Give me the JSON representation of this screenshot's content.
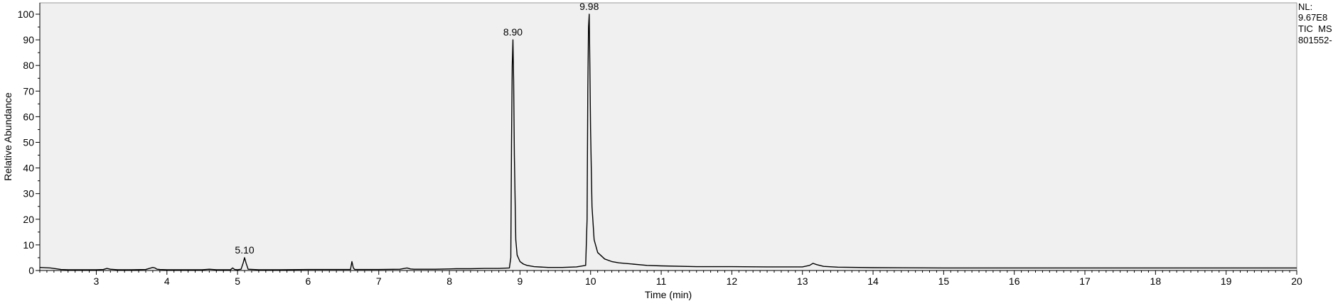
{
  "chart_data": {
    "type": "line",
    "xlabel": "Time (min)",
    "ylabel": "Relative Abundance",
    "xlim": [
      2.2,
      20.0
    ],
    "ylim": [
      0,
      100
    ],
    "x_ticks": [
      3,
      4,
      5,
      6,
      7,
      8,
      9,
      10,
      11,
      12,
      13,
      14,
      15,
      16,
      17,
      18,
      19,
      20
    ],
    "y_ticks": [
      0,
      10,
      20,
      30,
      40,
      50,
      60,
      70,
      80,
      90,
      100
    ],
    "grid": false,
    "plot_background": "#f0f0f0",
    "trace_color": "#000000",
    "peak_labels": [
      {
        "x": 5.1,
        "y": 5,
        "text": "5.10"
      },
      {
        "x": 8.9,
        "y": 90,
        "text": "8.90"
      },
      {
        "x": 9.98,
        "y": 100,
        "text": "9.98"
      }
    ],
    "series": [
      {
        "x": [
          2.2,
          2.35,
          2.45,
          2.5,
          2.6,
          2.7,
          2.8,
          2.9,
          3.0,
          3.1,
          3.15,
          3.2,
          3.3,
          3.5,
          3.7,
          3.8,
          3.83,
          3.86,
          3.9,
          4.0,
          4.2,
          4.5,
          4.6,
          4.7,
          4.9,
          4.93,
          4.96,
          5.0,
          5.05,
          5.08,
          5.1,
          5.12,
          5.15,
          5.3,
          5.6,
          6.0,
          6.3,
          6.6,
          6.62,
          6.64,
          6.66,
          6.7,
          7.0,
          7.3,
          7.4,
          7.45,
          7.5,
          7.8,
          8.1,
          8.3,
          8.5,
          8.7,
          8.85,
          8.87,
          8.88,
          8.89,
          8.9,
          8.91,
          8.92,
          8.94,
          8.96,
          9.0,
          9.05,
          9.1,
          9.2,
          9.4,
          9.6,
          9.8,
          9.93,
          9.95,
          9.96,
          9.97,
          9.98,
          9.99,
          10.0,
          10.02,
          10.05,
          10.1,
          10.2,
          10.3,
          10.4,
          10.6,
          10.8,
          11.0,
          11.5,
          12.0,
          12.5,
          13.0,
          13.1,
          13.15,
          13.2,
          13.3,
          13.5,
          14.0,
          15.0,
          16.0,
          17.0,
          18.0,
          19.0,
          20.0
        ],
        "y": [
          1.2,
          1.0,
          0.6,
          0.4,
          0.3,
          0.3,
          0.3,
          0.3,
          0.3,
          0.4,
          0.8,
          0.5,
          0.3,
          0.3,
          0.4,
          1.2,
          1.0,
          0.5,
          0.4,
          0.3,
          0.3,
          0.3,
          0.5,
          0.3,
          0.3,
          1.0,
          0.4,
          0.3,
          0.5,
          3.0,
          5.0,
          3.0,
          0.5,
          0.3,
          0.3,
          0.4,
          0.4,
          0.4,
          3.5,
          1.0,
          0.4,
          0.4,
          0.4,
          0.5,
          1.0,
          0.6,
          0.5,
          0.5,
          0.7,
          0.7,
          0.8,
          0.8,
          1.0,
          5.0,
          50.0,
          80.0,
          90.0,
          74.0,
          45.0,
          12.0,
          6.0,
          3.5,
          2.5,
          2.0,
          1.5,
          1.2,
          1.2,
          1.4,
          2.0,
          20.0,
          70.0,
          95.0,
          100.0,
          80.0,
          55.0,
          25.0,
          12.0,
          7.0,
          4.5,
          3.5,
          3.0,
          2.5,
          2.0,
          1.8,
          1.5,
          1.5,
          1.4,
          1.4,
          2.0,
          2.8,
          2.3,
          1.6,
          1.3,
          1.1,
          1.0,
          1.0,
          1.0,
          1.0,
          1.0,
          1.0
        ]
      }
    ]
  },
  "info": {
    "line1": "NL:",
    "line2": "9.67E8",
    "line3": "TIC  MS",
    "line4": "801552-"
  }
}
